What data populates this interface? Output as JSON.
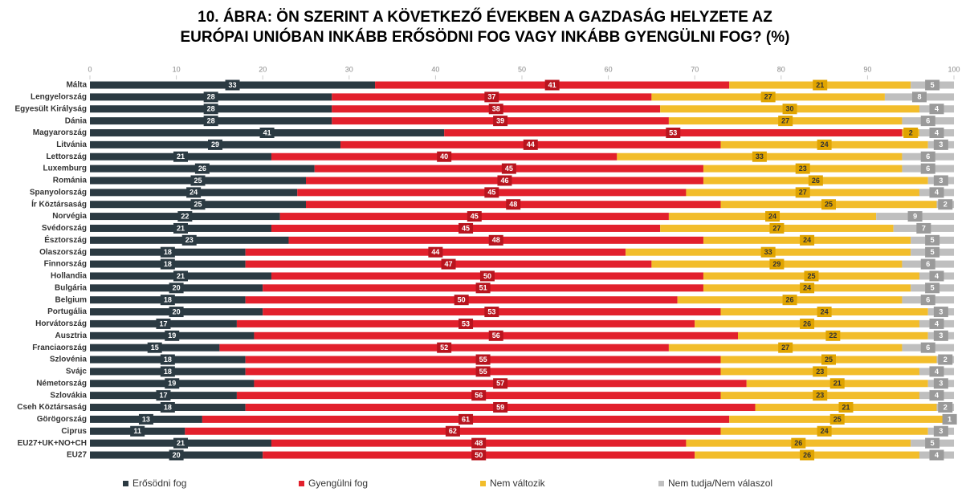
{
  "chart_data": {
    "type": "stacked_barh",
    "title": [
      "10. ÁBRA: ÖN SZERINT A KÖVETKEZŐ ÉVEKBEN A GAZDASÁG HELYZETE AZ",
      "EURÓPAI UNIÓBAN INKÁBB ERŐSÖDNI FOG VAGY INKÁBB GYENGÜLNI FOG? (%)"
    ],
    "categories": [
      "Málta",
      "Lengyelország",
      "Egyesült Királyság",
      "Dánia",
      "Magyarország",
      "Litvánia",
      "Lettország",
      "Luxemburg",
      "Románia",
      "Spanyolország",
      "Ír Köztársaság",
      "Norvégia",
      "Svédország",
      "Észtország",
      "Olaszország",
      "Finnország",
      "Hollandia",
      "Bulgária",
      "Belgium",
      "Portugália",
      "Horvátország",
      "Ausztria",
      "Franciaország",
      "Szlovénia",
      "Svájc",
      "Németország",
      "Szlovákia",
      "Cseh Köztársaság",
      "Görögország",
      "Ciprus",
      "EU27+UK+NO+CH",
      "EU27"
    ],
    "series": [
      {
        "name": "Erősödni fog",
        "color": "#2b3a42",
        "values": [
          33,
          28,
          28,
          28,
          41,
          29,
          21,
          26,
          25,
          24,
          25,
          22,
          21,
          23,
          18,
          18,
          21,
          20,
          18,
          20,
          17,
          19,
          15,
          18,
          18,
          19,
          17,
          18,
          13,
          11,
          21,
          20
        ]
      },
      {
        "name": "Gyengülni fog",
        "color": "#e2202c",
        "values": [
          41,
          37,
          38,
          39,
          53,
          44,
          40,
          45,
          46,
          45,
          48,
          45,
          45,
          48,
          44,
          47,
          50,
          51,
          50,
          53,
          53,
          56,
          52,
          55,
          55,
          57,
          56,
          59,
          61,
          62,
          48,
          50
        ]
      },
      {
        "name": "Nem változik",
        "color": "#f2bd2b",
        "values": [
          21,
          27,
          30,
          27,
          2,
          24,
          33,
          23,
          26,
          27,
          25,
          24,
          27,
          24,
          33,
          29,
          25,
          24,
          26,
          24,
          26,
          22,
          27,
          25,
          23,
          21,
          23,
          21,
          25,
          24,
          26,
          26
        ]
      },
      {
        "name": "Nem tudja/Nem válaszol",
        "color": "#bfbfbf",
        "values": [
          5,
          8,
          4,
          6,
          4,
          3,
          6,
          6,
          3,
          4,
          2,
          9,
          7,
          5,
          5,
          6,
          4,
          5,
          6,
          3,
          4,
          3,
          6,
          2,
          4,
          3,
          4,
          2,
          1,
          3,
          5,
          4
        ]
      }
    ],
    "xlim": [
      0,
      100
    ],
    "xticks": [
      0,
      10,
      20,
      30,
      40,
      50,
      60,
      70,
      80,
      90,
      100
    ],
    "grid": false,
    "legend": "bottom"
  }
}
